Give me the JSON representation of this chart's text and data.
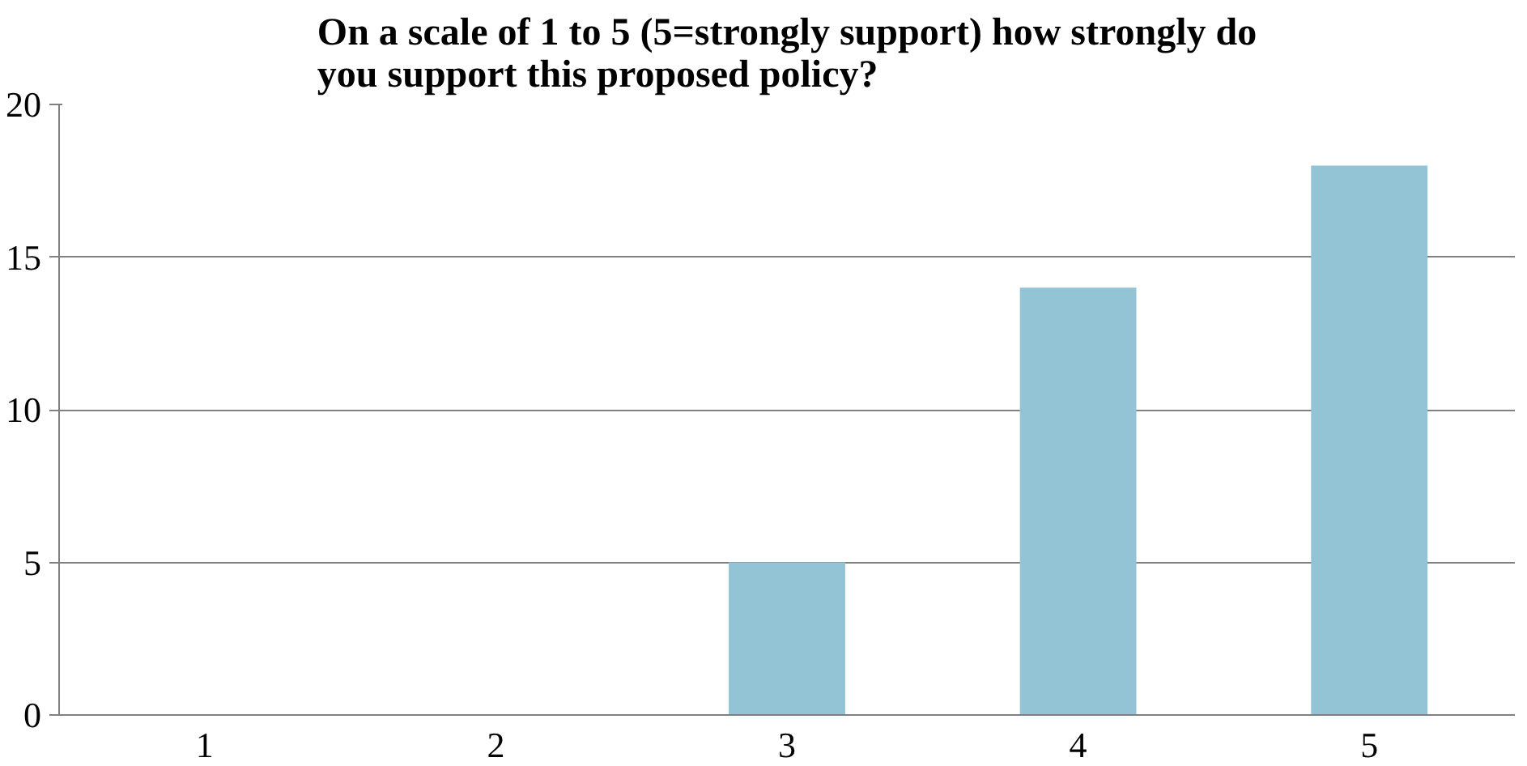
{
  "chart_data": {
    "type": "bar",
    "title": "On a scale of 1 to 5 (5=strongly support) how strongly do you support this proposed policy?",
    "categories": [
      "1",
      "2",
      "3",
      "4",
      "5"
    ],
    "values": [
      0,
      0,
      5,
      14,
      18
    ],
    "color": "#93c4d6",
    "ylim": [
      0,
      20
    ],
    "yticks": [
      0,
      5,
      10,
      15,
      20
    ],
    "grid": "y"
  }
}
